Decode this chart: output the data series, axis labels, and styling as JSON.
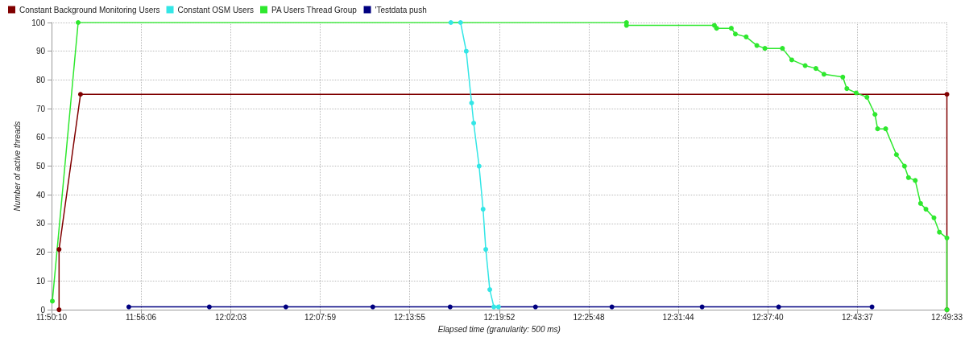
{
  "chart_data": {
    "type": "line",
    "xlabel": "Elapsed time (granularity: 500 ms)",
    "ylabel": "Number of active threads",
    "xlim": [
      11.8361,
      12.8258
    ],
    "xticks": [
      {
        "value": 11.8361,
        "label": "11:50:10"
      },
      {
        "value": 11.935,
        "label": "11:56:06"
      },
      {
        "value": 12.0342,
        "label": "12:02:03"
      },
      {
        "value": 12.1331,
        "label": "12:07:59"
      },
      {
        "value": 12.2319,
        "label": "12:13:55"
      },
      {
        "value": 12.3311,
        "label": "12:19:52"
      },
      {
        "value": 12.43,
        "label": "12:25:48"
      },
      {
        "value": 12.5289,
        "label": "12:31:44"
      },
      {
        "value": 12.6278,
        "label": "12:37:40"
      },
      {
        "value": 12.7269,
        "label": "12:43:37"
      },
      {
        "value": 12.8258,
        "label": "12:49:33"
      }
    ],
    "ylim": [
      0,
      100
    ],
    "yticks": [
      0,
      10,
      20,
      30,
      40,
      50,
      60,
      70,
      80,
      90,
      100
    ],
    "grid": true,
    "legend": "top left",
    "marker": "circle",
    "line_style": "solid",
    "series": [
      {
        "name": "Constant Background Monitoring Users",
        "color": "#800000",
        "x": [
          11.8444,
          11.8444,
          11.8681,
          12.8258,
          12.8258
        ],
        "values": [
          0,
          21,
          75,
          75,
          0
        ]
      },
      {
        "name": "Constant OSM Users",
        "color": "#33e6e6",
        "x": [
          12.2775,
          12.2882,
          12.2945,
          12.3004,
          12.3027,
          12.3087,
          12.3131,
          12.3161,
          12.3205,
          12.325,
          12.3301
        ],
        "values": [
          100,
          100,
          90,
          72,
          65,
          50,
          35,
          21,
          7,
          1,
          1
        ]
      },
      {
        "name": "PA Users Thread Group",
        "color": "#2ee82e",
        "x": [
          11.837,
          11.8655,
          12.4716,
          12.4716,
          12.5688,
          12.5712,
          12.5875,
          12.592,
          12.6039,
          12.6157,
          12.6246,
          12.644,
          12.6543,
          12.6691,
          12.681,
          12.6899,
          12.7107,
          12.7152,
          12.7255,
          12.7374,
          12.7463,
          12.7492,
          12.7581,
          12.77,
          12.7789,
          12.7833,
          12.7908,
          12.7967,
          12.8026,
          12.8115,
          12.8175,
          12.8258,
          12.8258
        ],
        "values": [
          3,
          100,
          100,
          99,
          99,
          98,
          98,
          96,
          95,
          92,
          91,
          91,
          87,
          85,
          84,
          82,
          81,
          77,
          75.5,
          74,
          68,
          63,
          63,
          54,
          50,
          46,
          45,
          37,
          35,
          32,
          27,
          25,
          0
        ]
      },
      {
        "name": "'Testdata push",
        "color": "#000080",
        "x": [
          11.9215,
          12.0105,
          12.0951,
          12.1912,
          12.2767,
          12.371,
          12.4555,
          12.5552,
          12.6398,
          12.743
        ],
        "values": [
          1,
          1,
          1,
          1,
          1,
          1,
          1,
          1,
          1,
          1
        ]
      }
    ]
  }
}
